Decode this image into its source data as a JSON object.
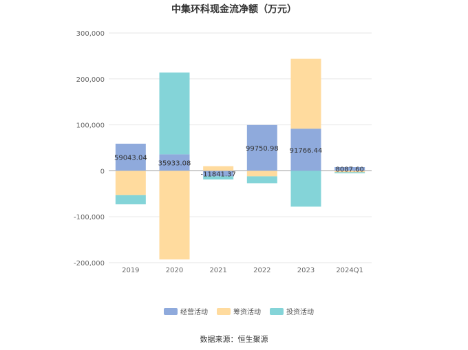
{
  "chart_data": {
    "type": "bar",
    "stacked": true,
    "title": "中集环科现金流净额（万元）",
    "xlabel": "",
    "ylabel": "",
    "categories": [
      "2019",
      "2020",
      "2021",
      "2022",
      "2023",
      "2024Q1"
    ],
    "ylim": [
      -200000,
      300000
    ],
    "yticks": [
      300000,
      200000,
      100000,
      0,
      -100000,
      -200000
    ],
    "ytick_labels": [
      "300,000",
      "200,000",
      "100,000",
      "0",
      "-100,000",
      "-200,000"
    ],
    "grid": true,
    "legend_position": "bottom",
    "series": [
      {
        "name": "经营活动",
        "color": "#8faadc",
        "values": [
          59043.04,
          35933.08,
          -11841.37,
          99750.98,
          91766.44,
          8087.6
        ],
        "labels": [
          "59043.04",
          "35933.08",
          "-11841.37",
          "99750.98",
          "91766.44",
          "8087.60"
        ]
      },
      {
        "name": "筹资活动",
        "color": "#ffdb9e",
        "values": [
          -53000,
          -193000,
          10000,
          -12000,
          152000,
          -3000
        ]
      },
      {
        "name": "投资活动",
        "color": "#84d4d8",
        "values": [
          -20000,
          178000,
          -7000,
          -15000,
          -78000,
          -2500
        ]
      }
    ]
  },
  "source_text": "数据来源：恒生聚源"
}
